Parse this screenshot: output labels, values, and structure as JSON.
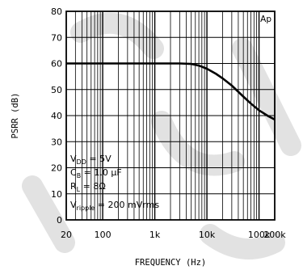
{
  "chart_data": {
    "type": "line",
    "title": "",
    "xlabel": "FREQUENCY (Hz)",
    "ylabel": "PSRR (dB)",
    "x_scale": "log",
    "xlim": [
      20,
      200000
    ],
    "ylim": [
      0,
      80
    ],
    "y_ticks": [
      0,
      10,
      20,
      30,
      40,
      50,
      60,
      70,
      80
    ],
    "x_ticks": [
      {
        "value": 20,
        "label": "20"
      },
      {
        "value": 100,
        "label": "100"
      },
      {
        "value": 1000,
        "label": "1k"
      },
      {
        "value": 10000,
        "label": "10k"
      },
      {
        "value": 100000,
        "label": "100k"
      },
      {
        "value": 200000,
        "label": "200k"
      }
    ],
    "grid": true,
    "corner_label": "Ap",
    "series": [
      {
        "x": [
          20,
          50,
          100,
          200,
          500,
          1000,
          2000,
          3000,
          5000,
          7000,
          10000,
          15000,
          20000,
          30000,
          50000,
          70000,
          100000,
          150000,
          200000
        ],
        "y": [
          60,
          60,
          60,
          60,
          60,
          60,
          60,
          60,
          59.8,
          59.2,
          58,
          56,
          54.3,
          51.5,
          47.3,
          44.6,
          42,
          39.8,
          38.5
        ]
      }
    ],
    "annotations": {
      "vdd_label": "V",
      "vdd_sub": "DD",
      "vdd_value": " = 5V",
      "cb_label": "C",
      "cb_sub": "B",
      "cb_value": " = 1.0 μF",
      "rl_label": "R",
      "rl_sub": "L",
      "rl_value": " = 8Ω",
      "vripple_label": "V",
      "vripple_sub": "ripple",
      "vripple_value": " = 200 mVrms"
    }
  }
}
